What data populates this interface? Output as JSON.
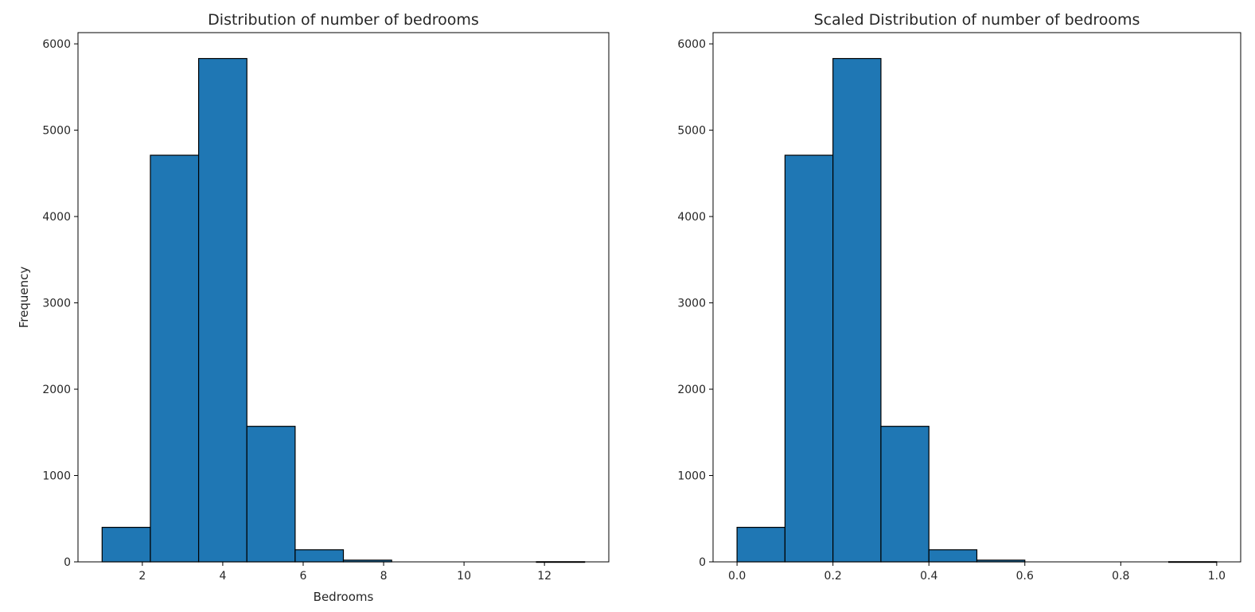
{
  "chart_data": [
    {
      "type": "histogram",
      "title": "Distribution of number of bedrooms",
      "xlabel": "Bedrooms",
      "ylabel": "Frequency",
      "xlim": [
        0.4,
        13.6
      ],
      "ylim": [
        0,
        6130
      ],
      "xticks": [
        2,
        4,
        6,
        8,
        10,
        12
      ],
      "xtick_labels": [
        "2",
        "4",
        "6",
        "8",
        "10",
        "12"
      ],
      "yticks": [
        0,
        1000,
        2000,
        3000,
        4000,
        5000,
        6000
      ],
      "ytick_labels": [
        "0",
        "1000",
        "2000",
        "3000",
        "4000",
        "5000",
        "6000"
      ],
      "bin_edges": [
        1.0,
        2.2,
        3.4,
        4.6,
        5.8,
        7.0,
        8.2,
        9.4,
        10.6,
        11.8,
        13.0
      ],
      "counts": [
        400,
        4710,
        5830,
        1570,
        140,
        20,
        0,
        0,
        0,
        2
      ],
      "bar_color": "#1f77b4",
      "edge_color": "#000000",
      "grid": false
    },
    {
      "type": "histogram",
      "title": "Scaled Distribution of number of bedrooms",
      "xlabel": "",
      "ylabel": "",
      "xlim": [
        -0.05,
        1.05
      ],
      "ylim": [
        0,
        6130
      ],
      "xticks": [
        0.0,
        0.2,
        0.4,
        0.6,
        0.8,
        1.0
      ],
      "xtick_labels": [
        "0.0",
        "0.2",
        "0.4",
        "0.6",
        "0.8",
        "1.0"
      ],
      "yticks": [
        0,
        1000,
        2000,
        3000,
        4000,
        5000,
        6000
      ],
      "ytick_labels": [
        "0",
        "1000",
        "2000",
        "3000",
        "4000",
        "5000",
        "6000"
      ],
      "bin_edges": [
        0.0,
        0.1,
        0.2,
        0.3,
        0.4,
        0.5,
        0.6,
        0.7,
        0.8,
        0.9,
        1.0
      ],
      "counts": [
        400,
        4710,
        5830,
        1570,
        140,
        20,
        0,
        0,
        0,
        2
      ],
      "bar_color": "#1f77b4",
      "edge_color": "#000000",
      "grid": false
    }
  ]
}
